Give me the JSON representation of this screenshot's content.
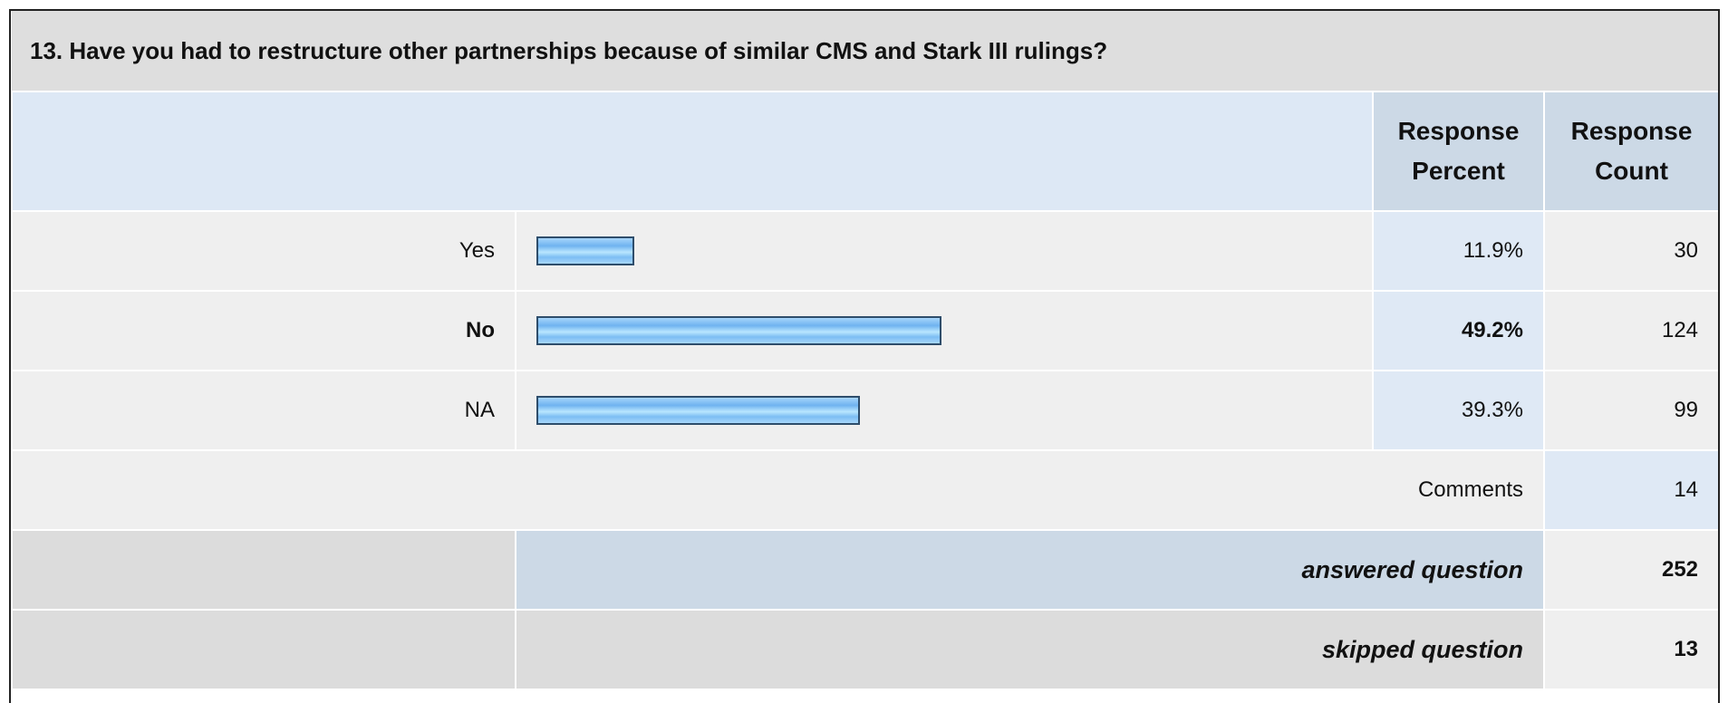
{
  "question": {
    "title": "13. Have you had to restructure other partnerships because of similar CMS and Stark III rulings?"
  },
  "header": {
    "percent": "Response Percent",
    "count": "Response Count"
  },
  "rows": [
    {
      "label": "Yes",
      "percent": {
        "value": 11.9,
        "label": "11.9%"
      },
      "count": 30
    },
    {
      "label": "No",
      "percent": {
        "value": 49.2,
        "label": "49.2%"
      },
      "count": 124
    },
    {
      "label": "NA",
      "percent": {
        "value": 39.3,
        "label": "39.3%"
      },
      "count": 99
    }
  ],
  "comments": {
    "label": "Comments",
    "count": 14
  },
  "answered": {
    "label": "answered question",
    "count": 252
  },
  "skipped": {
    "label": "skipped question",
    "count": 13
  }
}
